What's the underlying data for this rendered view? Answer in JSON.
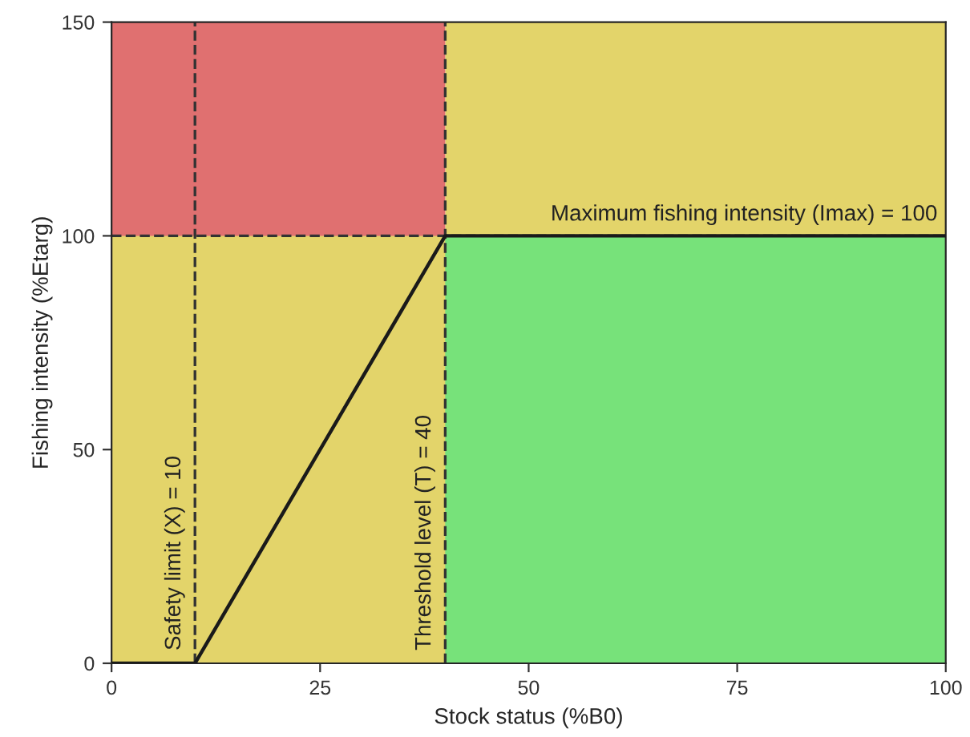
{
  "chart_data": {
    "type": "area",
    "xlabel": "Stock status (%B0)",
    "ylabel": "Fishing intensity (%Etarg)",
    "xlim": [
      0,
      100
    ],
    "xticks": [
      0,
      25,
      50,
      75,
      100
    ],
    "ylim": [
      0,
      150
    ],
    "yticks": [
      0,
      50,
      100,
      150
    ],
    "grid": false,
    "legend": false,
    "bands": [
      {
        "axis": "x",
        "from": 40,
        "to": 100,
        "color": "#e3d46a"
      }
    ],
    "series": [
      {
        "color": "#e07070",
        "x": [
          0,
          40
        ],
        "values": [
          150,
          150
        ]
      },
      {
        "color": "#e3d46a",
        "x": [
          0,
          40
        ],
        "values": [
          100,
          100
        ]
      },
      {
        "color": "#77e27a",
        "x": [
          40,
          100
        ],
        "values": [
          100,
          100
        ]
      },
      {
        "type": "line",
        "color": "#1a1a1a",
        "x": [
          0,
          10,
          40,
          100
        ],
        "values": [
          0,
          0,
          100,
          100
        ],
        "line_style": "solid"
      }
    ],
    "ref_lines": [
      {
        "axis": "x",
        "value": 10,
        "label": "Safety limit (X) = 10",
        "line_style": "dashed",
        "color": "#333333"
      },
      {
        "axis": "x",
        "value": 40,
        "label": "Threshold level (T) = 40",
        "line_style": "dashed",
        "color": "#333333"
      },
      {
        "axis": "y",
        "value": 100,
        "label": "Maximum fishing intensity (Imax) = 100",
        "line_style": "dashed",
        "color": "#333333"
      }
    ]
  }
}
